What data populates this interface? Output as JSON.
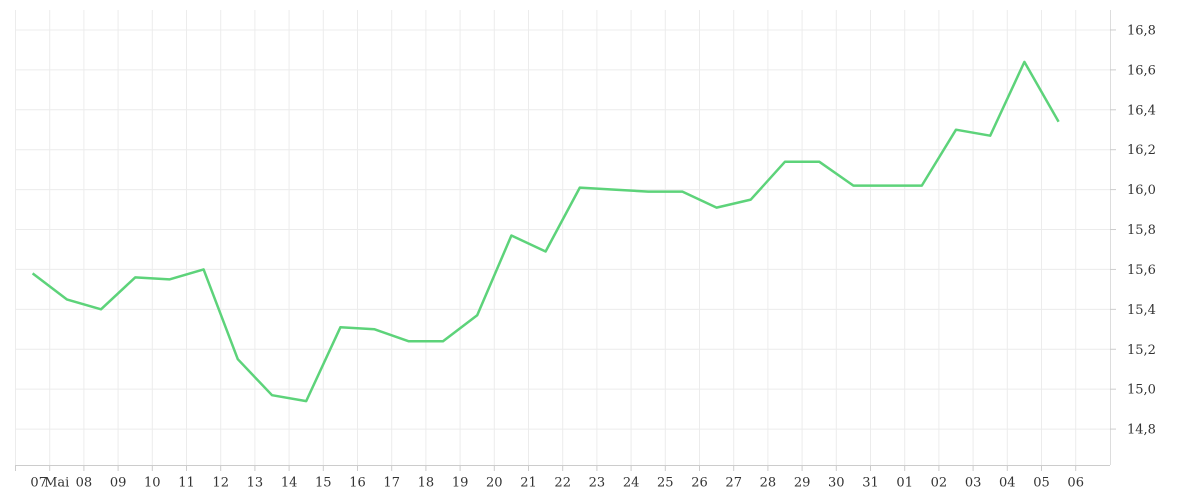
{
  "chart_data": {
    "type": "line",
    "x_labels": [
      "07",
      "08",
      "09",
      "10",
      "11",
      "12",
      "13",
      "14",
      "15",
      "16",
      "17",
      "18",
      "19",
      "20",
      "21",
      "22",
      "23",
      "24",
      "25",
      "26",
      "27",
      "28",
      "29",
      "30",
      "31",
      "01",
      "02",
      "03",
      "04",
      "05",
      "06"
    ],
    "month_label": "Mai",
    "series": [
      {
        "color": "#5dd37a",
        "values": [
          15.58,
          15.45,
          15.4,
          15.56,
          15.55,
          15.6,
          15.15,
          14.97,
          14.94,
          15.31,
          15.3,
          15.24,
          15.24,
          15.37,
          15.77,
          15.69,
          16.01,
          16.0,
          15.99,
          15.99,
          15.91,
          15.95,
          16.14,
          16.14,
          16.02,
          16.02,
          16.02,
          16.3,
          16.27,
          16.64,
          16.34
        ]
      }
    ],
    "ylim": [
      14.62,
      16.9
    ],
    "yticks": [
      {
        "value": 14.8,
        "label": "14,8"
      },
      {
        "value": 15.0,
        "label": "15,0"
      },
      {
        "value": 15.2,
        "label": "15,2"
      },
      {
        "value": 15.4,
        "label": "15,4"
      },
      {
        "value": 15.6,
        "label": "15,6"
      },
      {
        "value": 15.8,
        "label": "15,8"
      },
      {
        "value": 16.0,
        "label": "16,0"
      },
      {
        "value": 16.2,
        "label": "16,2"
      },
      {
        "value": 16.4,
        "label": "16,4"
      },
      {
        "value": 16.6,
        "label": "16,6"
      },
      {
        "value": 16.8,
        "label": "16,8"
      }
    ],
    "grid": true
  }
}
